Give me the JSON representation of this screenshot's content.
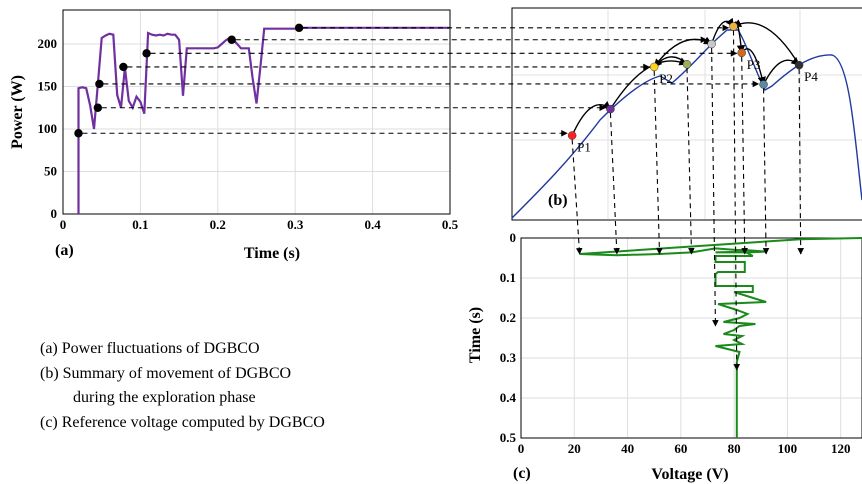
{
  "chart_data": [
    {
      "id": "a",
      "type": "line",
      "panel_label": "(a)",
      "xlabel": "Time (s)",
      "ylabel": "Power (W)",
      "xlim": [
        0,
        0.5
      ],
      "ylim": [
        0,
        240
      ],
      "xticks": [
        "0",
        "0.1",
        "0.2",
        "0.3",
        "0.4",
        "0.5"
      ],
      "yticks": [
        "0",
        "50",
        "100",
        "150",
        "200"
      ],
      "grid": true,
      "line_color": "#7030a0",
      "series": [
        {
          "x": [
            0.02,
            0.02,
            0.02,
            0.025,
            0.03,
            0.035,
            0.04,
            0.045,
            0.05,
            0.055,
            0.06,
            0.065,
            0.07,
            0.075,
            0.08,
            0.085,
            0.09,
            0.095,
            0.1,
            0.105,
            0.11,
            0.115,
            0.12,
            0.125,
            0.13,
            0.135,
            0.14,
            0.145,
            0.15,
            0.155,
            0.16,
            0.165,
            0.17,
            0.175,
            0.18,
            0.185,
            0.19,
            0.195,
            0.2,
            0.205,
            0.21,
            0.215,
            0.22,
            0.225,
            0.23,
            0.235,
            0.24,
            0.245,
            0.25,
            0.255,
            0.26,
            0.265,
            0.27,
            0.3,
            0.305,
            0.5
          ],
          "y": [
            0,
            148,
            148,
            149,
            148,
            128,
            100,
            152,
            207,
            210,
            212,
            211,
            140,
            125,
            172,
            133,
            125,
            138,
            132,
            118,
            213,
            211,
            210,
            211,
            210,
            212,
            211,
            211,
            205,
            139,
            195,
            195,
            195,
            195,
            195,
            195,
            195,
            195,
            196,
            200,
            204,
            207,
            205,
            200,
            195,
            195,
            195,
            160,
            130,
            173,
            218,
            218,
            218,
            218,
            219,
            219
          ]
        }
      ],
      "markers": [
        {
          "x": 0.02,
          "y": 95
        },
        {
          "x": 0.045,
          "y": 125
        },
        {
          "x": 0.047,
          "y": 153
        },
        {
          "x": 0.078,
          "y": 173
        },
        {
          "x": 0.108,
          "y": 189
        },
        {
          "x": 0.218,
          "y": 205
        },
        {
          "x": 0.305,
          "y": 219
        }
      ]
    },
    {
      "id": "b",
      "type": "line",
      "panel_label": "(b)",
      "description_points": [
        "P1",
        "P2",
        "P3",
        "P4"
      ],
      "curve_color": "#1f3aa0",
      "points": [
        {
          "label": "P1",
          "v": 22,
          "p": 95,
          "color": "#ff2020"
        },
        {
          "label": "",
          "v": 36,
          "p": 125,
          "color": "#7030a0"
        },
        {
          "label": "P2",
          "v": 52,
          "p": 173,
          "color": "#ffd21f"
        },
        {
          "label": "",
          "v": 64,
          "p": 176,
          "color": "#9caf5a"
        },
        {
          "label": "",
          "v": 73,
          "p": 199,
          "color": "#c8c8c8"
        },
        {
          "label": "",
          "v": 81,
          "p": 219,
          "color": "#f2b040"
        },
        {
          "label": "P3",
          "v": 84,
          "p": 189,
          "color": "#d06a20"
        },
        {
          "label": "",
          "v": 92,
          "p": 153,
          "color": "#5a8aa0"
        },
        {
          "label": "P4",
          "v": 105,
          "p": 175,
          "color": "#303030"
        }
      ]
    },
    {
      "id": "c",
      "type": "line",
      "panel_label": "(c)",
      "xlabel": "Voltage (V)",
      "ylabel": "Time (s)",
      "xlim": [
        0,
        128
      ],
      "ylim": [
        0,
        0.5
      ],
      "xticks": [
        "0",
        "20",
        "40",
        "60",
        "80",
        "100",
        "120"
      ],
      "yticks": [
        "0",
        "0.1",
        "0.2",
        "0.3",
        "0.4",
        "0.5"
      ],
      "y_reversed": true,
      "grid": true,
      "line_color": "#1a8a1a",
      "series": [
        {
          "v": [
            128,
            105,
            22,
            36,
            52,
            64,
            73,
            81,
            84,
            92,
            85,
            73,
            84,
            87,
            81,
            73,
            73,
            84,
            84,
            74,
            73,
            73,
            87,
            87,
            80,
            92,
            74,
            81,
            85,
            82,
            76,
            88,
            82,
            80,
            76,
            83,
            80,
            83,
            73,
            82,
            81,
            81,
            81
          ],
          "t": [
            0.0,
            0.003,
            0.04,
            0.043,
            0.04,
            0.036,
            0.026,
            0.03,
            0.03,
            0.034,
            0.036,
            0.036,
            0.034,
            0.045,
            0.045,
            0.045,
            0.06,
            0.06,
            0.085,
            0.085,
            0.09,
            0.12,
            0.12,
            0.135,
            0.135,
            0.16,
            0.165,
            0.18,
            0.19,
            0.2,
            0.21,
            0.215,
            0.22,
            0.23,
            0.24,
            0.245,
            0.255,
            0.265,
            0.27,
            0.285,
            0.31,
            0.31,
            0.5
          ]
        }
      ]
    }
  ],
  "captions": [
    "(a) Power fluctuations of DGBCO",
    "(b) Summary of movement of DGBCO",
    "during the exploration phase",
    "(c)  Reference voltage computed by DGBCO"
  ]
}
